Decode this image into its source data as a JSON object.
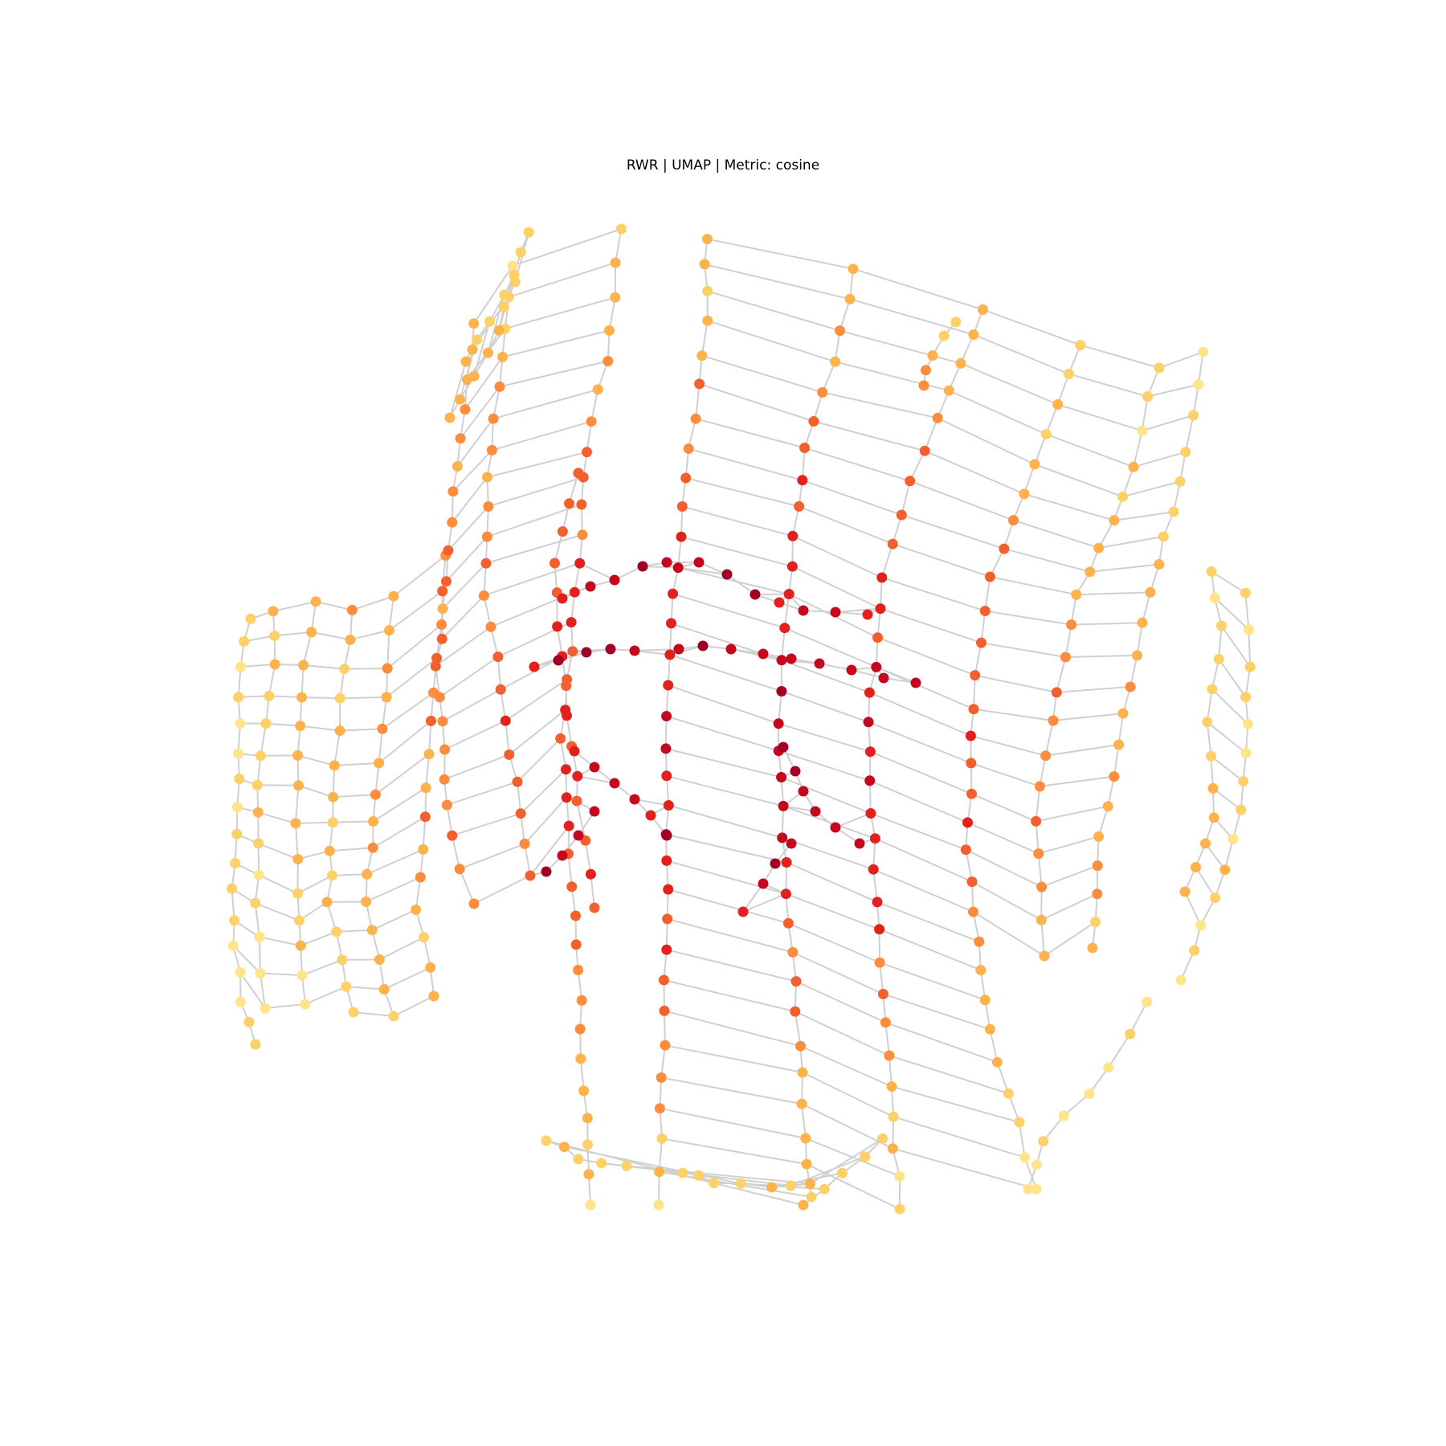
{
  "title": "RWR | UMAP | Metric: cosine",
  "style": {
    "background": "#ffffff",
    "edge_color": "#d0d0d0",
    "node_colormap": "YlOrRd",
    "palette": [
      "#ffe48a",
      "#fed068",
      "#feb24c",
      "#fd8d3c",
      "#f4602d",
      "#e3211c",
      "#c4091f",
      "#a10026"
    ]
  }
}
